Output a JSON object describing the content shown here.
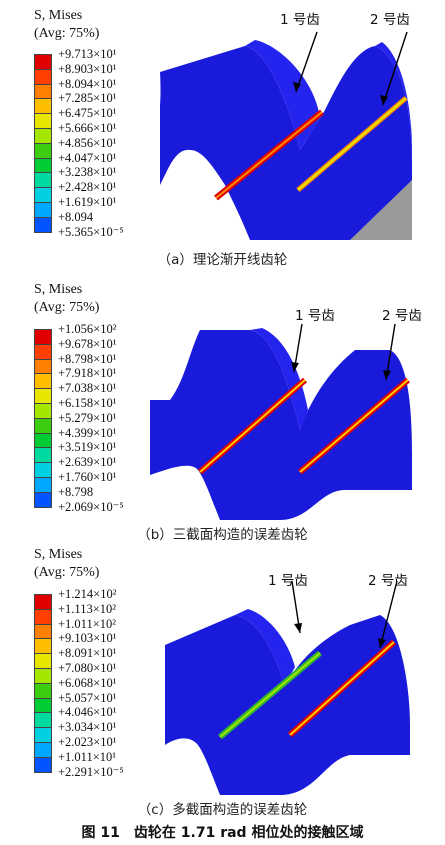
{
  "legend_colors": [
    "#e00000",
    "#ff4000",
    "#ff7f00",
    "#ffbf00",
    "#e6e600",
    "#a5e600",
    "#3ccc10",
    "#00cc33",
    "#00d9a0",
    "#00d0e0",
    "#00a8ff",
    "#0055ff",
    "#0000cc"
  ],
  "panels": [
    {
      "id": "a",
      "title_line1": "S, Mises",
      "title_line2": "(Avg: 75%)",
      "legend_values": [
        "+9.713×10¹",
        "+8.903×10¹",
        "+8.094×10¹",
        "+7.285×10¹",
        "+6.475×10¹",
        "+5.666×10¹",
        "+4.856×10¹",
        "+4.047×10¹",
        "+3.238×10¹",
        "+2.428×10¹",
        "+1.619×10¹",
        "+8.094",
        "+5.365×10⁻⁵"
      ],
      "tooth1_label": "1 号齿",
      "tooth2_label": "2 号齿",
      "caption": "（a）理论渐开线齿轮"
    },
    {
      "id": "b",
      "title_line1": "S, Mises",
      "title_line2": "(Avg: 75%)",
      "legend_values": [
        "+1.056×10²",
        "+9.678×10¹",
        "+8.798×10¹",
        "+7.918×10¹",
        "+7.038×10¹",
        "+6.158×10¹",
        "+5.279×10¹",
        "+4.399×10¹",
        "+3.519×10¹",
        "+2.639×10¹",
        "+1.760×10¹",
        "+8.798",
        "+2.069×10⁻⁵"
      ],
      "tooth1_label": "1 号齿",
      "tooth2_label": "2 号齿",
      "caption": "（b）三截面构造的误差齿轮"
    },
    {
      "id": "c",
      "title_line1": "S, Mises",
      "title_line2": "(Avg: 75%)",
      "legend_values": [
        "+1.214×10²",
        "+1.113×10²",
        "+1.011×10²",
        "+9.103×10¹",
        "+8.091×10¹",
        "+7.080×10¹",
        "+6.068×10¹",
        "+5.057×10¹",
        "+4.046×10¹",
        "+3.034×10¹",
        "+2.023×10¹",
        "+1.011×10¹",
        "+2.291×10⁻⁵"
      ],
      "tooth1_label": "1 号齿",
      "tooth2_label": "2 号齿",
      "caption": "（c）多截面构造的误差齿轮"
    }
  ],
  "figure_caption": "图 11　齿轮在 1.71 rad 相位处的接触区域"
}
